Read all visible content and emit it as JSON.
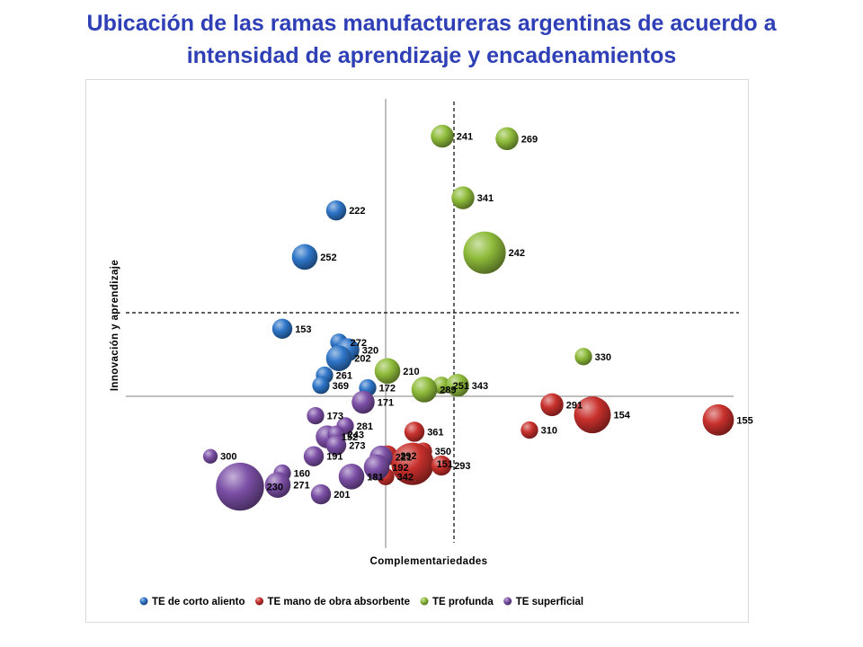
{
  "title": {
    "line1": "Ubicación de las ramas manufactureras argentinas de acuerdo a",
    "line2": "intensidad de aprendizaje y encadenamientos"
  },
  "chart_data": {
    "type": "scatter",
    "xlabel": "Complementariedades",
    "ylabel": "Innovación y aprendizaje",
    "legend_position": "bottom",
    "grid": false,
    "series": [
      {
        "name": "TE de corto aliento",
        "color": "#2e75c8",
        "points": [
          {
            "label": "222",
            "x": -0.55,
            "y": 2.2,
            "size": 2
          },
          {
            "label": "252",
            "x": -0.9,
            "y": 1.65,
            "size": 3
          },
          {
            "label": "153",
            "x": -1.15,
            "y": 0.8,
            "size": 2
          },
          {
            "label": "272",
            "x": -0.52,
            "y": 0.64,
            "size": 1.5
          },
          {
            "label": "320",
            "x": -0.42,
            "y": 0.55,
            "size": 2.5
          },
          {
            "label": "202",
            "x": -0.52,
            "y": 0.45,
            "size": 3
          },
          {
            "label": "261",
            "x": -0.68,
            "y": 0.25,
            "size": 1.5
          },
          {
            "label": "369",
            "x": -0.72,
            "y": 0.13,
            "size": 1.5
          },
          {
            "label": "172",
            "x": -0.2,
            "y": 0.1,
            "size": 1.5
          }
        ]
      },
      {
        "name": "TE mano de obra absorbente",
        "color": "#c8302c",
        "points": [
          {
            "label": "291",
            "x": 1.85,
            "y": -0.1,
            "size": 2.5
          },
          {
            "label": "154",
            "x": 2.3,
            "y": -0.22,
            "size": 5
          },
          {
            "label": "155",
            "x": 3.7,
            "y": -0.28,
            "size": 4
          },
          {
            "label": "310",
            "x": 1.6,
            "y": -0.4,
            "size": 1.5
          },
          {
            "label": "361",
            "x": 0.32,
            "y": -0.42,
            "size": 2
          },
          {
            "label": "292",
            "x": 0.02,
            "y": -0.7,
            "size": 2
          },
          {
            "label": "350",
            "x": 0.42,
            "y": -0.65,
            "size": 1.5
          },
          {
            "label": "151",
            "x": 0.3,
            "y": -0.8,
            "size": 6
          },
          {
            "label": "293",
            "x": 0.62,
            "y": -0.82,
            "size": 2
          },
          {
            "label": "342",
            "x": 0.0,
            "y": -0.95,
            "size": 1.5
          }
        ]
      },
      {
        "name": "TE profunda",
        "color": "#8fbc3b",
        "points": [
          {
            "label": "241",
            "x": 0.63,
            "y": 3.08,
            "size": 2.5
          },
          {
            "label": "269",
            "x": 1.35,
            "y": 3.05,
            "size": 2.5
          },
          {
            "label": "341",
            "x": 0.86,
            "y": 2.35,
            "size": 2.5
          },
          {
            "label": "242",
            "x": 1.1,
            "y": 1.7,
            "size": 6
          },
          {
            "label": "330",
            "x": 2.2,
            "y": 0.47,
            "size": 1.5
          },
          {
            "label": "210",
            "x": 0.02,
            "y": 0.3,
            "size": 3
          },
          {
            "label": "251",
            "x": 0.62,
            "y": 0.13,
            "size": 1.5
          },
          {
            "label": "343",
            "x": 0.8,
            "y": 0.13,
            "size": 2.5
          },
          {
            "label": "289",
            "x": 0.43,
            "y": 0.08,
            "size": 3
          }
        ]
      },
      {
        "name": "TE superficial",
        "color": "#7b4fa6",
        "points": [
          {
            "label": "171",
            "x": -0.25,
            "y": -0.07,
            "size": 2.5
          },
          {
            "label": "173",
            "x": -0.78,
            "y": -0.23,
            "size": 1.5
          },
          {
            "label": "281",
            "x": -0.45,
            "y": -0.35,
            "size": 1.5
          },
          {
            "label": "152",
            "x": -0.65,
            "y": -0.48,
            "size": 2.5
          },
          {
            "label": "243",
            "x": -0.55,
            "y": -0.45,
            "size": 1.5
          },
          {
            "label": "273",
            "x": -0.55,
            "y": -0.58,
            "size": 2
          },
          {
            "label": "221",
            "x": -0.05,
            "y": -0.72,
            "size": 2.5
          },
          {
            "label": "191",
            "x": -0.8,
            "y": -0.71,
            "size": 2
          },
          {
            "label": "192",
            "x": -0.1,
            "y": -0.84,
            "size": 3
          },
          {
            "label": "300",
            "x": -1.95,
            "y": -0.71,
            "size": 1
          },
          {
            "label": "160",
            "x": -1.15,
            "y": -0.91,
            "size": 1.5
          },
          {
            "label": "181",
            "x": -0.38,
            "y": -0.95,
            "size": 3
          },
          {
            "label": "230",
            "x": -1.62,
            "y": -1.07,
            "size": 7
          },
          {
            "label": "271",
            "x": -1.2,
            "y": -1.05,
            "size": 3
          },
          {
            "label": "201",
            "x": -0.72,
            "y": -1.16,
            "size": 2
          }
        ]
      }
    ]
  }
}
